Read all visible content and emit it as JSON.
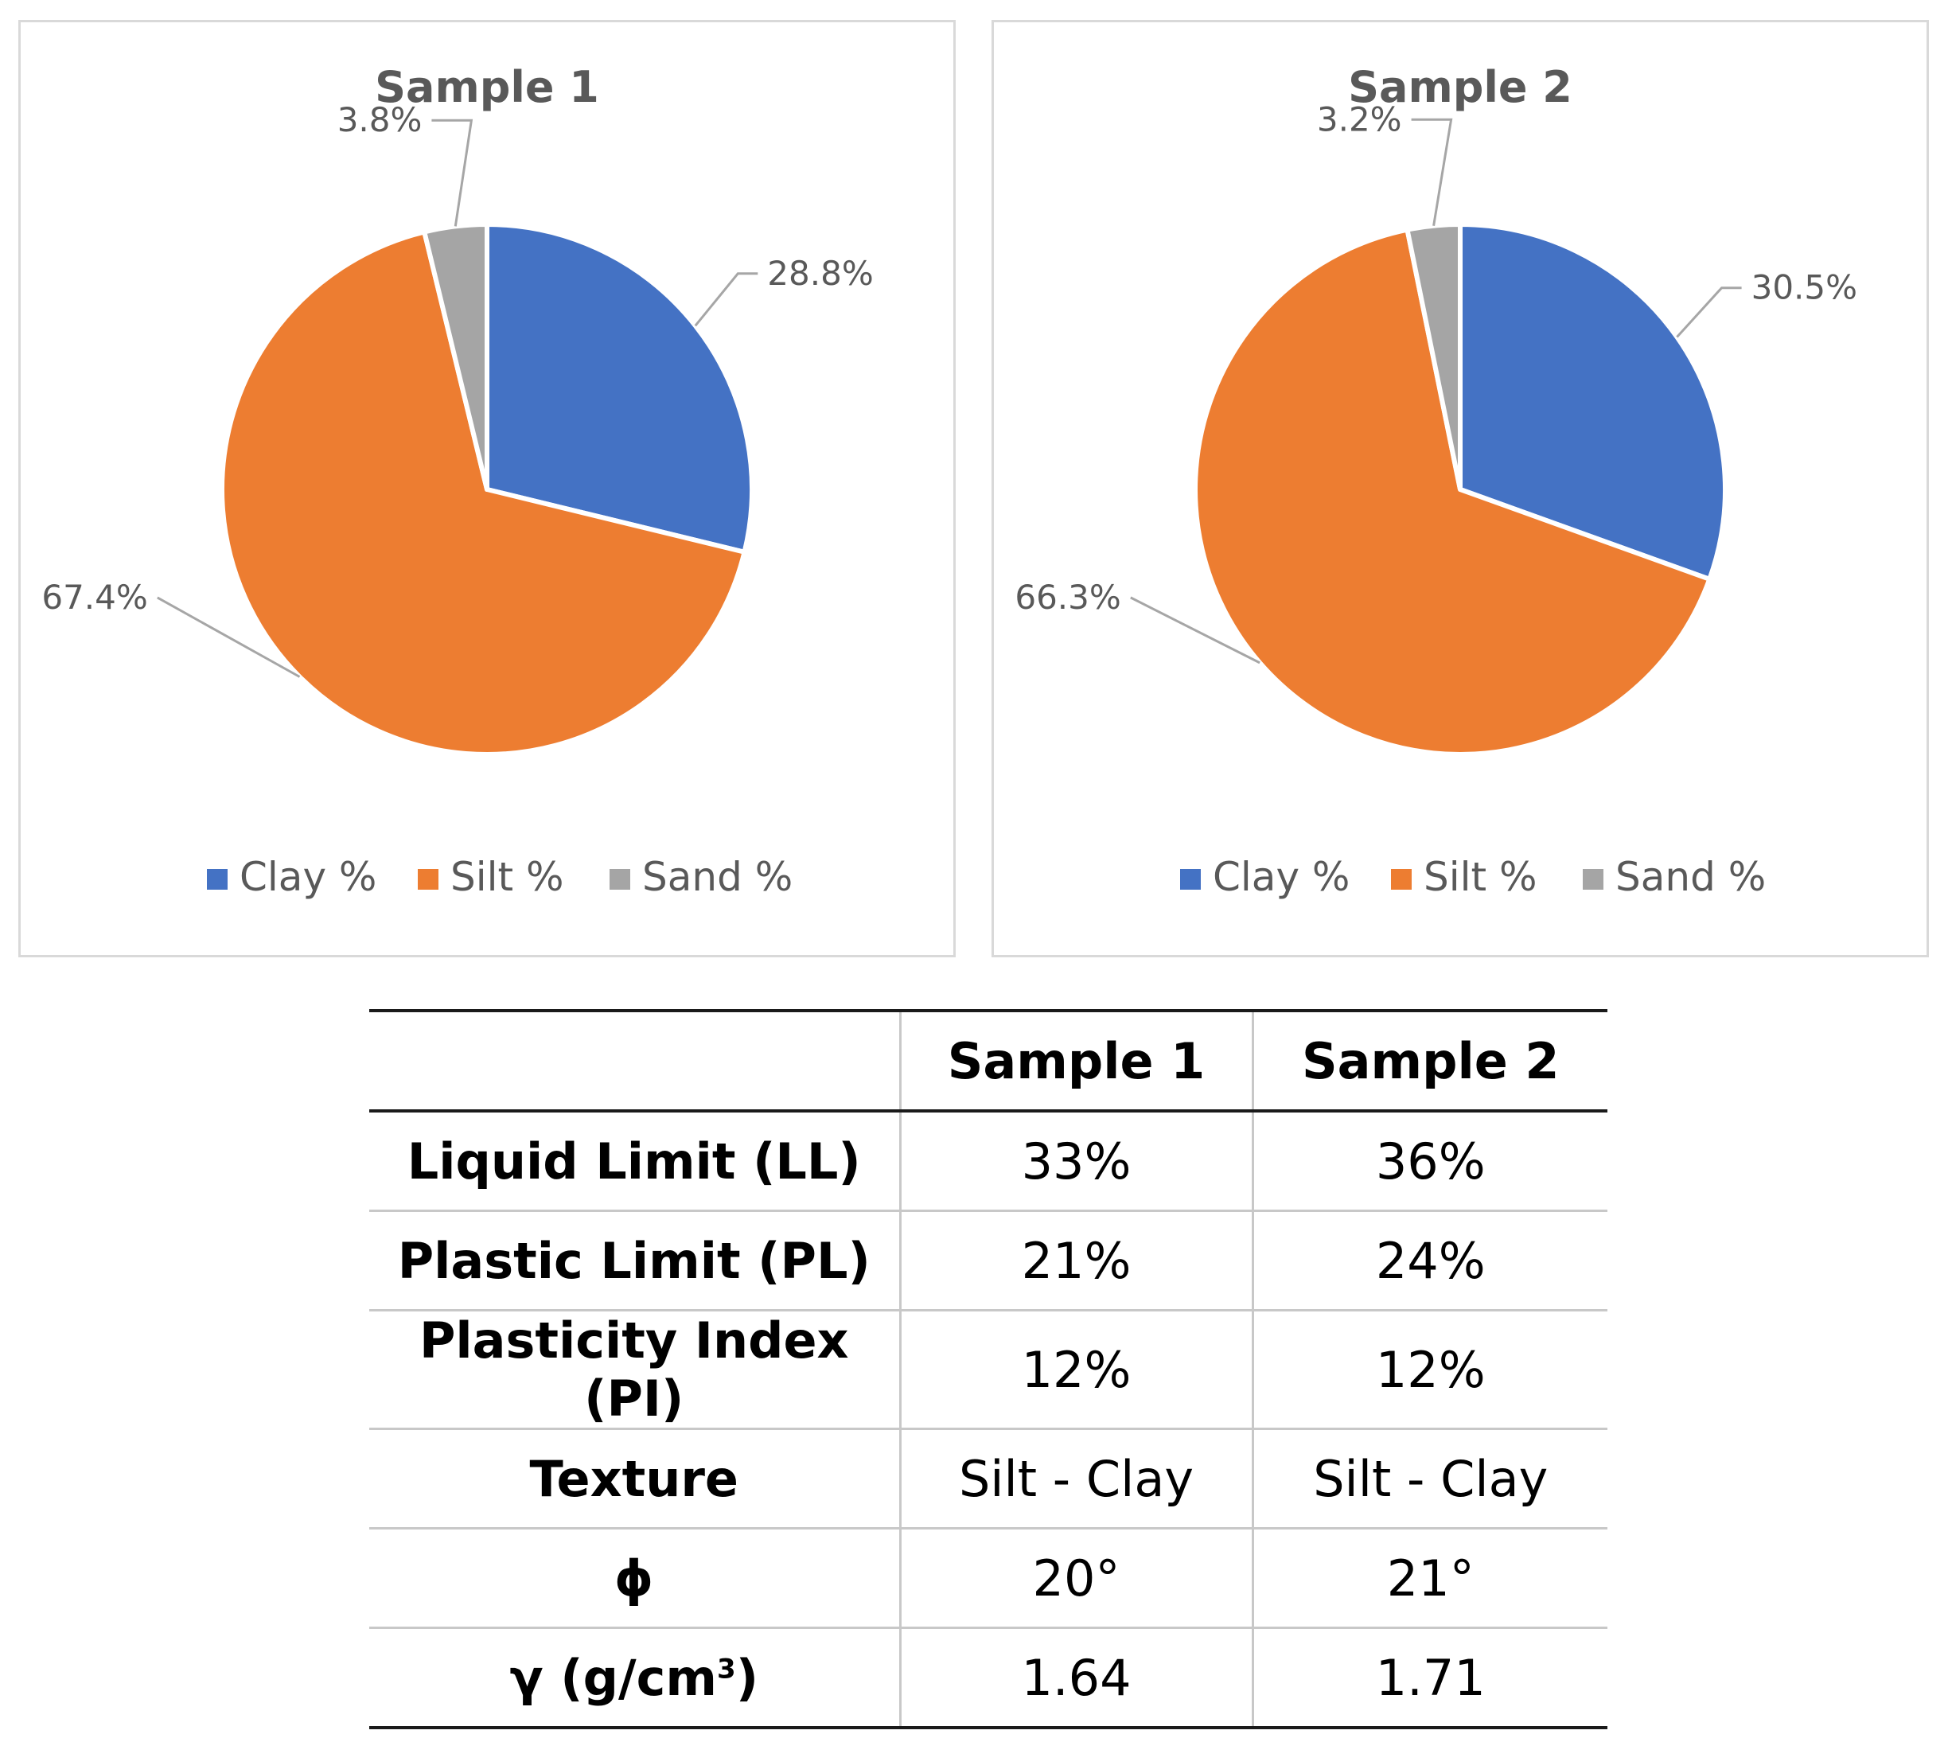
{
  "chart_data": [
    {
      "type": "pie",
      "title": "Sample 1",
      "categories": [
        "Clay %",
        "Silt %",
        "Sand %"
      ],
      "values": [
        28.8,
        67.4,
        3.8
      ],
      "data_labels": [
        "28.8%",
        "67.4%",
        "3.8%"
      ],
      "colors": [
        "#4472c4",
        "#ed7d31",
        "#a5a5a5"
      ],
      "legend_position": "bottom"
    },
    {
      "type": "pie",
      "title": "Sample 2",
      "categories": [
        "Clay %",
        "Silt %",
        "Sand %"
      ],
      "values": [
        30.5,
        66.3,
        3.2
      ],
      "data_labels": [
        "30.5%",
        "66.3%",
        "3.2%"
      ],
      "colors": [
        "#4472c4",
        "#ed7d31",
        "#a5a5a5"
      ],
      "legend_position": "bottom"
    }
  ],
  "table": {
    "headers": [
      "",
      "Sample 1",
      "Sample 2"
    ],
    "rows": [
      {
        "label": "Liquid Limit (LL)",
        "sample1": "33%",
        "sample2": "36%"
      },
      {
        "label": "Plastic Limit (PL)",
        "sample1": "21%",
        "sample2": "24%"
      },
      {
        "label": "Plasticity Index (PI)",
        "sample1": "12%",
        "sample2": "12%"
      },
      {
        "label": "Texture",
        "sample1": "Silt - Clay",
        "sample2": "Silt - Clay"
      },
      {
        "label": "ϕ",
        "sample1": "20°",
        "sample2": "21°"
      },
      {
        "label": "γ (g/cm",
        "label_sup": "3",
        "label_suffix": ")",
        "sample1": "1.64",
        "sample2": "1.71"
      }
    ]
  }
}
